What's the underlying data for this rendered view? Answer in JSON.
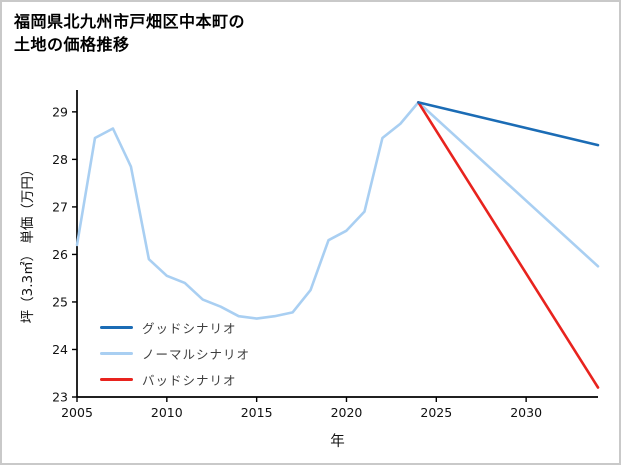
{
  "title": {
    "line1": "福岡県北九州市戸畑区中本町の",
    "line2": "土地の価格推移"
  },
  "chart_data": {
    "type": "line",
    "title": "福岡県北九州市戸畑区中本町の土地の価格推移",
    "xlabel": "年",
    "ylabel": "坪（3.3㎡） 単価（万円）",
    "xlim": [
      2005,
      2034
    ],
    "ylim": [
      23,
      29.46
    ],
    "xticks": [
      2005,
      2010,
      2015,
      2020,
      2025,
      2030
    ],
    "yticks": [
      23,
      24,
      25,
      26,
      27,
      28,
      29
    ],
    "grid": false,
    "legend_position": "lower left",
    "series": [
      {
        "id": "good-scenario",
        "name": "グッドシナリオ",
        "color": "#1b6cb5",
        "z": 3,
        "x": [
          2024,
          2034
        ],
        "values": [
          29.2,
          28.3
        ]
      },
      {
        "id": "normal-scenario",
        "name": "ノーマルシナリオ",
        "color": "#a9cff2",
        "z": 1,
        "x": [
          2005,
          2006,
          2007,
          2008,
          2009,
          2010,
          2011,
          2012,
          2013,
          2014,
          2015,
          2016,
          2017,
          2018,
          2019,
          2020,
          2021,
          2022,
          2023,
          2024,
          2034
        ],
        "values": [
          26.2,
          28.45,
          28.65,
          27.85,
          25.9,
          25.55,
          25.4,
          25.05,
          24.9,
          24.7,
          24.65,
          24.7,
          24.78,
          25.25,
          26.3,
          26.5,
          26.9,
          28.45,
          28.75,
          29.2,
          25.75
        ]
      },
      {
        "id": "bad-scenario",
        "name": "バッドシナリオ",
        "color": "#e8231e",
        "z": 2,
        "x": [
          2024,
          2034
        ],
        "values": [
          29.2,
          23.2
        ]
      }
    ]
  }
}
